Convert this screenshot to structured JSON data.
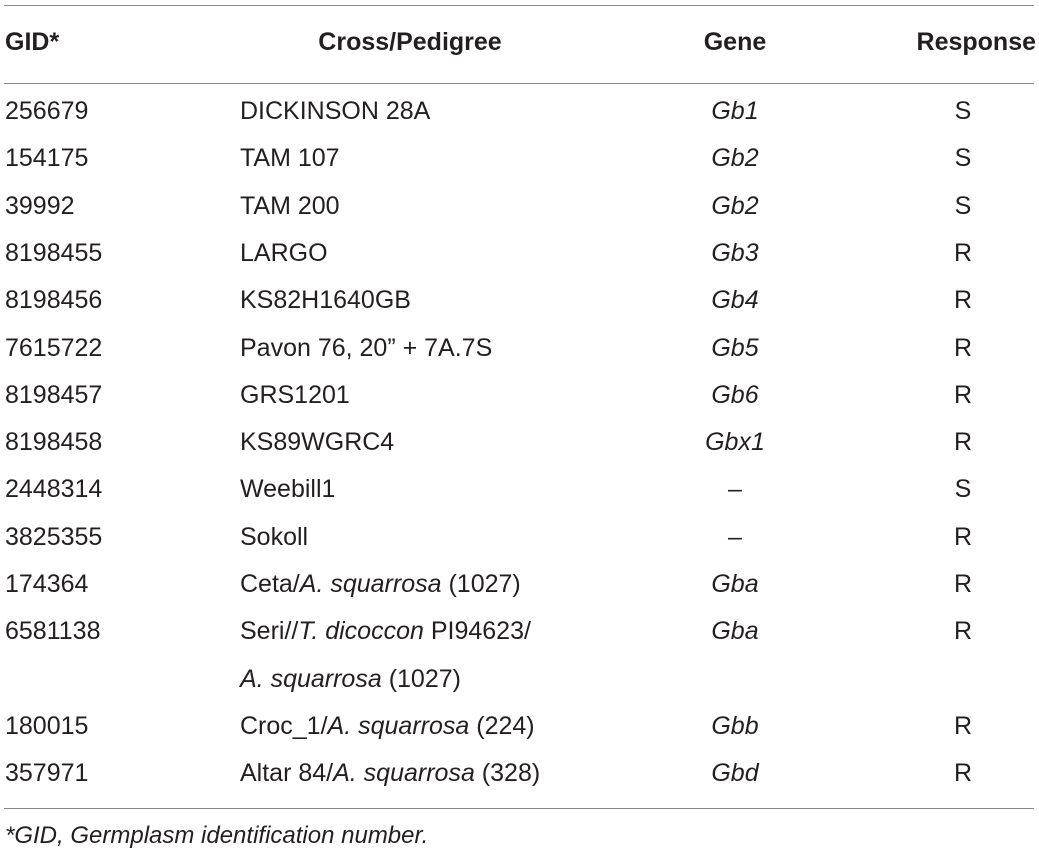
{
  "table": {
    "header": [
      "GID*",
      "Cross/Pedigree",
      "Gene",
      "Response"
    ],
    "rows": [
      {
        "gid": "256679",
        "pedigree": [
          [
            {
              "text": "DICKINSON 28A"
            }
          ]
        ],
        "gene": "Gb1",
        "response": "S"
      },
      {
        "gid": "154175",
        "pedigree": [
          [
            {
              "text": "TAM 107"
            }
          ]
        ],
        "gene": "Gb2",
        "response": "S"
      },
      {
        "gid": "39992",
        "pedigree": [
          [
            {
              "text": "TAM 200"
            }
          ]
        ],
        "gene": "Gb2",
        "response": "S"
      },
      {
        "gid": "8198455",
        "pedigree": [
          [
            {
              "text": "LARGO"
            }
          ]
        ],
        "gene": "Gb3",
        "response": "R"
      },
      {
        "gid": "8198456",
        "pedigree": [
          [
            {
              "text": "KS82H1640GB"
            }
          ]
        ],
        "gene": "Gb4",
        "response": "R"
      },
      {
        "gid": "7615722",
        "pedigree": [
          [
            {
              "text": "Pavon 76, 20” + 7A.7S"
            }
          ]
        ],
        "gene": "Gb5",
        "response": "R"
      },
      {
        "gid": "8198457",
        "pedigree": [
          [
            {
              "text": "GRS1201"
            }
          ]
        ],
        "gene": "Gb6",
        "response": "R"
      },
      {
        "gid": "8198458",
        "pedigree": [
          [
            {
              "text": "KS89WGRC4"
            }
          ]
        ],
        "gene": "Gbx1",
        "response": "R"
      },
      {
        "gid": "2448314",
        "pedigree": [
          [
            {
              "text": "Weebill1"
            }
          ]
        ],
        "gene": "–",
        "response": "S"
      },
      {
        "gid": "3825355",
        "pedigree": [
          [
            {
              "text": "Sokoll"
            }
          ]
        ],
        "gene": "–",
        "response": "R"
      },
      {
        "gid": "174364",
        "pedigree": [
          [
            {
              "text": "Ceta/"
            },
            {
              "text": "A. squarrosa",
              "italic": true
            },
            {
              "text": " (1027)"
            }
          ]
        ],
        "gene": "Gba",
        "response": "R"
      },
      {
        "gid": "6581138",
        "pedigree": [
          [
            {
              "text": "Seri//"
            },
            {
              "text": "T. dicoccon",
              "italic": true
            },
            {
              "text": " PI94623/"
            }
          ],
          [
            {
              "text": "A. squarrosa",
              "italic": true
            },
            {
              "text": " (1027)"
            }
          ]
        ],
        "gene": "Gba",
        "response": "R"
      },
      {
        "gid": "180015",
        "pedigree": [
          [
            {
              "text": "Croc_1/"
            },
            {
              "text": "A. squarrosa",
              "italic": true
            },
            {
              "text": " (224)"
            }
          ]
        ],
        "gene": "Gbb",
        "response": "R"
      },
      {
        "gid": "357971",
        "pedigree": [
          [
            {
              "text": "Altar 84/"
            },
            {
              "text": "A. squarrosa",
              "italic": true
            },
            {
              "text": " (328)"
            }
          ]
        ],
        "gene": "Gbd",
        "response": "R"
      }
    ],
    "footnote": "*GID, Germplasm identification number."
  }
}
